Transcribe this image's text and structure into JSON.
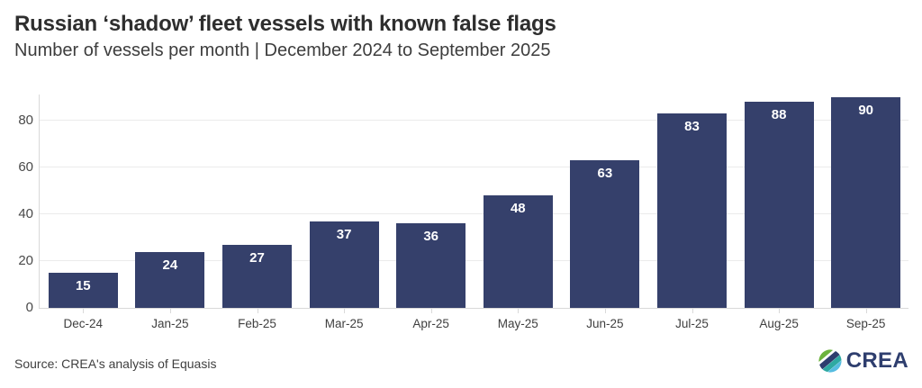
{
  "header": {
    "title": "Russian ‘shadow’ fleet vessels with known false flags",
    "subtitle": "Number of vessels per month | December 2024 to September 2025"
  },
  "chart_data": {
    "type": "bar",
    "title": "Russian ‘shadow’ fleet vessels with known false flags",
    "subtitle": "Number of vessels per month | December 2024 to September 2025",
    "categories": [
      "Dec-24",
      "Jan-25",
      "Feb-25",
      "Mar-25",
      "Apr-25",
      "May-25",
      "Jun-25",
      "Jul-25",
      "Aug-25",
      "Sep-25"
    ],
    "values": [
      15,
      24,
      27,
      37,
      36,
      48,
      63,
      83,
      88,
      90
    ],
    "xlabel": "",
    "ylabel": "",
    "yticks": [
      0,
      20,
      40,
      60,
      80
    ],
    "ylim": [
      0,
      91.5
    ],
    "grid": true,
    "legend": "none",
    "value_labels": "inside-top",
    "bar_color": "#35406B",
    "value_label_color": "#FFFFFF"
  },
  "footer": {
    "source": "Source: CREA's analysis of Equasis",
    "logo": {
      "text": "CREA",
      "text_color": "#2E3E6E",
      "icon": "crea-striped-globe-icon",
      "icon_colors": [
        "#6CB33E",
        "#2E3E6E",
        "#2EA9A2",
        "#56BCE0"
      ]
    }
  },
  "colors": {
    "background": "#FFFFFF",
    "title_text": "#2E2E2E",
    "subtitle_text": "#3D3D3D",
    "axis_text": "#4A4A4A",
    "grid_line": "#EBEBEB",
    "axis_line": "#D9D9D9",
    "source_text": "#3F3F3F"
  }
}
